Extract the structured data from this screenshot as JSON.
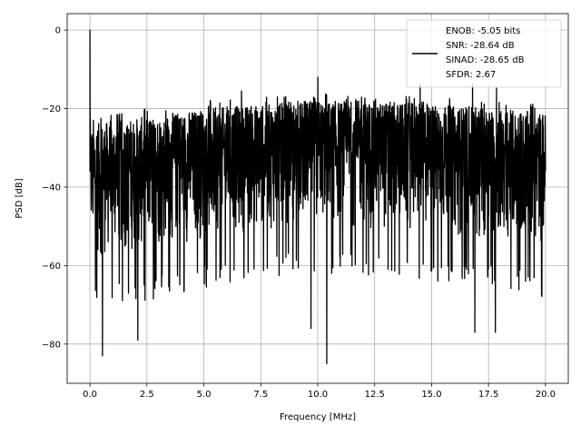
{
  "chart_data": {
    "type": "line",
    "title": "",
    "xlabel": "Frequency [MHz]",
    "ylabel": "PSD [dB]",
    "xlim": [
      -1.0,
      21.0
    ],
    "ylim": [
      -90.0,
      4.2
    ],
    "xticks": [
      0.0,
      2.5,
      5.0,
      7.5,
      10.0,
      12.5,
      15.0,
      17.5,
      20.0
    ],
    "xtick_labels": [
      "0.0",
      "2.5",
      "5.0",
      "7.5",
      "10.0",
      "12.5",
      "15.0",
      "17.5",
      "20.0"
    ],
    "yticks": [
      0,
      -20,
      -40,
      -60,
      -80
    ],
    "ytick_labels": [
      "0",
      "−20",
      "−40",
      "−60",
      "−80"
    ],
    "grid": true,
    "line_color": "#000000",
    "legend_position": "upper-right",
    "legend": [
      "ENOB: -5.05 bits",
      "SNR: -28.64 dB",
      "SINAD: -28.65 dB",
      "SFDR: 2.67"
    ],
    "series": [
      {
        "values_description_x_range": [
          0.0,
          20.0
        ],
        "envelope": {
          "x": [
            0.0,
            0.05,
            2.5,
            5.0,
            7.5,
            10.0,
            12.5,
            15.0,
            17.5,
            20.0
          ],
          "upper": [
            -24.0,
            -24.0,
            -22.0,
            -20.0,
            -19.0,
            -18.0,
            -18.0,
            -19.0,
            -20.0,
            -21.0
          ],
          "lower": [
            -65.0,
            -65.0,
            -63.0,
            -60.0,
            -57.0,
            -56.0,
            -57.0,
            -58.0,
            -60.0,
            -62.0
          ]
        },
        "peaks": [
          {
            "x": 0.0,
            "y": 0.0
          },
          {
            "x": 6.65,
            "y": -15.5
          },
          {
            "x": 10.0,
            "y": -12.0
          },
          {
            "x": 14.5,
            "y": -13.7
          },
          {
            "x": 16.8,
            "y": -13.8
          },
          {
            "x": 17.85,
            "y": -14.8
          }
        ],
        "dips": [
          {
            "x": 0.55,
            "y": -83.0
          },
          {
            "x": 2.1,
            "y": -79.0
          },
          {
            "x": 9.7,
            "y": -76.0
          },
          {
            "x": 10.4,
            "y": -85.0
          },
          {
            "x": 16.9,
            "y": -77.0
          },
          {
            "x": 17.8,
            "y": -77.0
          }
        ]
      }
    ]
  }
}
